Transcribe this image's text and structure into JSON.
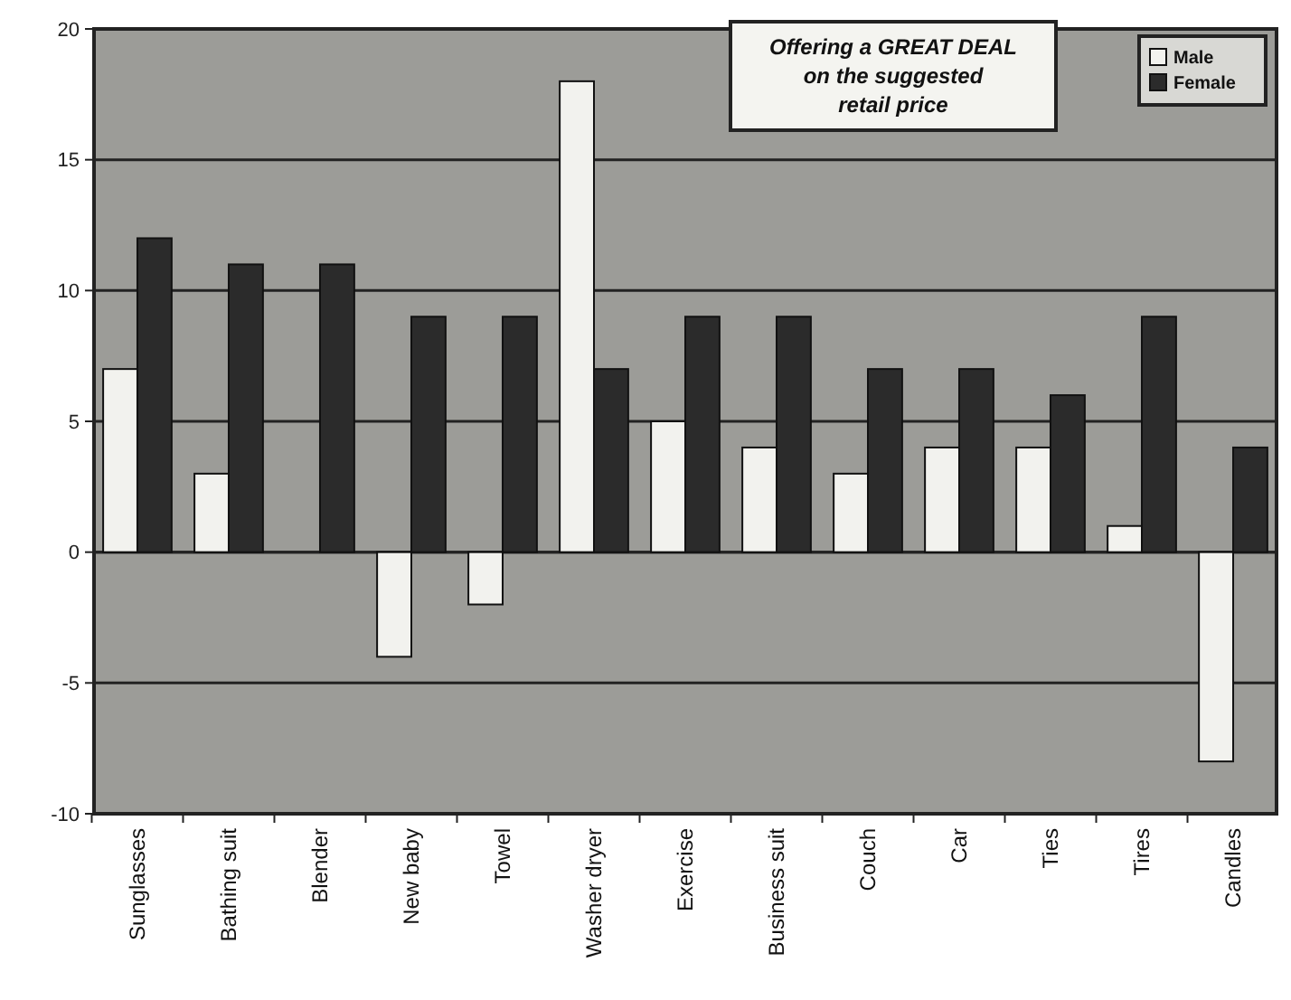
{
  "chart_data": {
    "type": "bar",
    "annotations": [
      "Offering a GREAT DEAL on the suggested retail price"
    ],
    "categories": [
      "Sunglasses",
      "Bathing suit",
      "Blender",
      "New baby",
      "Towel",
      "Washer dryer",
      "Exercise",
      "Business suit",
      "Couch",
      "Car",
      "Ties",
      "Tires",
      "Candles"
    ],
    "series": [
      {
        "name": "Male",
        "color": "#f2f2ee",
        "values": [
          7,
          3,
          0,
          -4,
          -2,
          18,
          5,
          4,
          3,
          4,
          4,
          1,
          -8
        ]
      },
      {
        "name": "Female",
        "color": "#2b2b2b",
        "values": [
          12,
          11,
          11,
          9,
          9,
          7,
          9,
          9,
          7,
          7,
          6,
          9,
          4
        ]
      }
    ],
    "ylim": [
      -10,
      20
    ],
    "yticks": [
      -10,
      -5,
      0,
      5,
      10,
      15,
      20
    ],
    "grid": "y",
    "legend": "top right"
  }
}
